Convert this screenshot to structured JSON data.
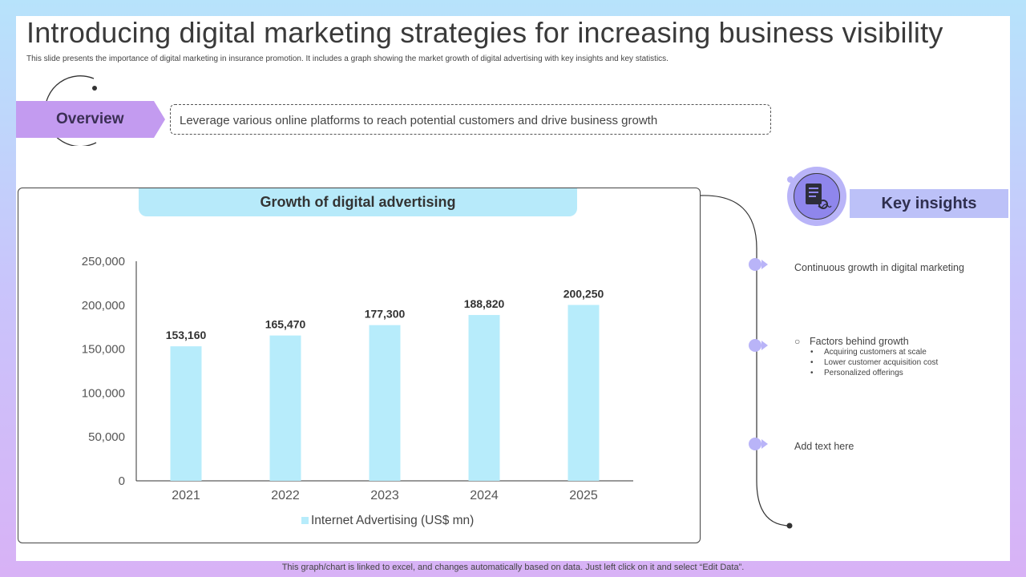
{
  "title": "Introducing digital marketing strategies for increasing business visibility",
  "subtitle": "This slide presents the importance of digital marketing in insurance promotion. It includes a graph showing the market growth of digital advertising with key insights and key statistics.",
  "overview": {
    "label": "Overview",
    "text": "Leverage various online platforms to reach potential customers and drive business growth"
  },
  "chart_heading": "Growth of digital advertising",
  "chart_data": {
    "type": "bar",
    "categories": [
      "2021",
      "2022",
      "2023",
      "2024",
      "2025"
    ],
    "series": [
      {
        "name": "Internet Advertising (US$ mn)",
        "values": [
          153160,
          165470,
          177300,
          188820,
          200250
        ]
      }
    ],
    "data_labels": [
      "153,160",
      "165,470",
      "177,300",
      "188,820",
      "200,250"
    ],
    "y_ticks": [
      "0",
      "50,000",
      "100,000",
      "150,000",
      "200,000",
      "250,000"
    ],
    "ylim": [
      0,
      250000
    ],
    "grid": false,
    "legend_position": "bottom",
    "bar_color": "#b7ecfb"
  },
  "key_insights": {
    "title": "Key insights",
    "point1": "Continuous growth in digital marketing",
    "point2": "Factors behind growth",
    "point2_ring": "○",
    "point2_subs": [
      "Acquiring customers at scale",
      "Lower customer acquisition cost",
      "Personalized offerings"
    ],
    "point3": "Add text here",
    "icon": "document-gear-icon"
  },
  "footer": "This graph/chart is linked to excel, and changes automatically based on data. Just left click on it and select “Edit Data”.",
  "colors": {
    "accent_purple": "#c39bf0",
    "accent_blue": "#b7eafa",
    "insight_blue": "#bcc1f8",
    "marker": "#b9b4f8"
  }
}
